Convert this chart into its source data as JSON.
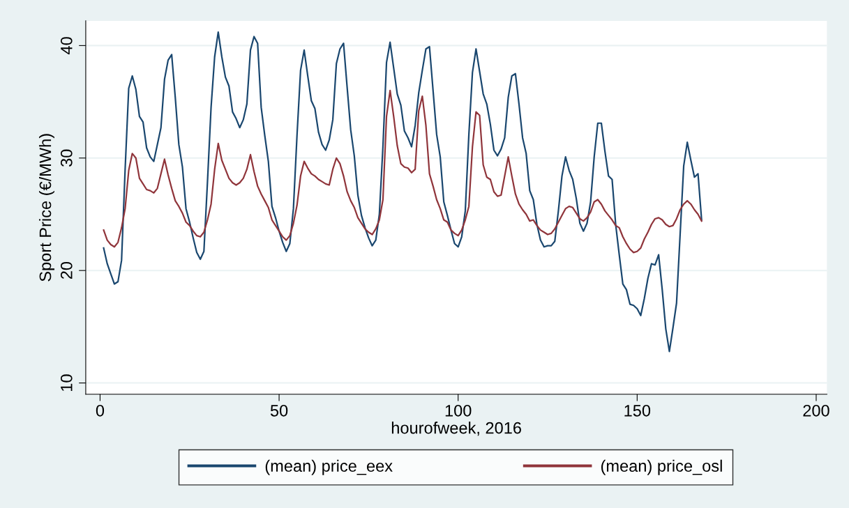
{
  "chart_data": {
    "type": "line",
    "xlabel": "hourofweek, 2016",
    "ylabel": "Sport Price (€/MWh)",
    "x": [
      1,
      2,
      3,
      4,
      5,
      6,
      7,
      8,
      9,
      10,
      11,
      12,
      13,
      14,
      15,
      16,
      17,
      18,
      19,
      20,
      21,
      22,
      23,
      24,
      25,
      26,
      27,
      28,
      29,
      30,
      31,
      32,
      33,
      34,
      35,
      36,
      37,
      38,
      39,
      40,
      41,
      42,
      43,
      44,
      45,
      46,
      47,
      48,
      49,
      50,
      51,
      52,
      53,
      54,
      55,
      56,
      57,
      58,
      59,
      60,
      61,
      62,
      63,
      64,
      65,
      66,
      67,
      68,
      69,
      70,
      71,
      72,
      73,
      74,
      75,
      76,
      77,
      78,
      79,
      80,
      81,
      82,
      83,
      84,
      85,
      86,
      87,
      88,
      89,
      90,
      91,
      92,
      93,
      94,
      95,
      96,
      97,
      98,
      99,
      100,
      101,
      102,
      103,
      104,
      105,
      106,
      107,
      108,
      109,
      110,
      111,
      112,
      113,
      114,
      115,
      116,
      117,
      118,
      119,
      120,
      121,
      122,
      123,
      124,
      125,
      126,
      127,
      128,
      129,
      130,
      131,
      132,
      133,
      134,
      135,
      136,
      137,
      138,
      139,
      140,
      141,
      142,
      143,
      144,
      145,
      146,
      147,
      148,
      149,
      150,
      151,
      152,
      153,
      154,
      155,
      156,
      157,
      158,
      159,
      160,
      161,
      162,
      163,
      164,
      165,
      166,
      167,
      168
    ],
    "series": [
      {
        "name": "(mean) price_eex",
        "color": "#1a476f",
        "values": [
          22.0,
          20.6,
          19.7,
          18.8,
          19.0,
          20.9,
          29.0,
          36.2,
          37.3,
          36.1,
          33.7,
          33.2,
          30.9,
          30.1,
          29.7,
          31.2,
          32.7,
          37.0,
          38.7,
          39.2,
          35.4,
          31.2,
          29.2,
          25.5,
          24.3,
          22.9,
          21.6,
          21.0,
          21.7,
          27.9,
          34.5,
          39.0,
          41.2,
          39.0,
          37.2,
          36.4,
          34.1,
          33.5,
          32.7,
          33.4,
          34.8,
          39.6,
          40.8,
          40.2,
          34.5,
          32.0,
          29.7,
          25.7,
          24.7,
          23.5,
          22.5,
          21.7,
          22.4,
          25.5,
          32.0,
          37.8,
          39.6,
          37.3,
          35.1,
          34.4,
          32.3,
          31.2,
          30.7,
          31.6,
          33.4,
          38.4,
          39.7,
          40.2,
          36.3,
          32.5,
          30.2,
          26.7,
          24.9,
          23.8,
          22.9,
          22.2,
          22.7,
          25.0,
          31.0,
          38.5,
          40.3,
          38.0,
          35.7,
          34.7,
          32.4,
          31.8,
          31.0,
          32.9,
          35.8,
          37.8,
          39.7,
          39.9,
          36.0,
          32.1,
          30.1,
          26.1,
          24.9,
          23.6,
          22.4,
          22.1,
          23.0,
          25.3,
          32.1,
          37.6,
          39.7,
          37.7,
          35.7,
          34.8,
          33.0,
          30.7,
          30.2,
          30.8,
          31.8,
          35.4,
          37.3,
          37.5,
          34.8,
          31.8,
          30.4,
          27.1,
          26.3,
          24.1,
          22.7,
          22.1,
          22.2,
          22.2,
          22.6,
          25.3,
          28.4,
          30.1,
          28.9,
          28.1,
          26.4,
          24.2,
          23.5,
          24.2,
          26.1,
          30.1,
          33.1,
          33.1,
          30.6,
          28.4,
          28.1,
          24.1,
          21.4,
          18.8,
          18.3,
          17.0,
          16.9,
          16.6,
          16.0,
          17.5,
          19.3,
          20.6,
          20.5,
          21.4,
          18.3,
          14.8,
          12.8,
          14.9,
          17.1,
          23.2,
          29.3,
          31.4,
          29.8,
          28.3,
          28.6,
          24.5
        ]
      },
      {
        "name": "(mean) price_osl",
        "color": "#90353b",
        "values": [
          23.6,
          22.7,
          22.3,
          22.1,
          22.5,
          23.8,
          25.5,
          28.9,
          30.4,
          30.0,
          28.2,
          27.7,
          27.2,
          27.1,
          26.9,
          27.3,
          28.6,
          29.9,
          28.5,
          27.3,
          26.2,
          25.7,
          25.1,
          24.3,
          24.0,
          23.5,
          23.1,
          23.0,
          23.4,
          24.5,
          25.9,
          29.0,
          31.3,
          29.8,
          29.0,
          28.2,
          27.8,
          27.6,
          27.8,
          28.2,
          29.0,
          30.3,
          28.8,
          27.5,
          26.8,
          26.2,
          25.6,
          24.5,
          24.0,
          23.5,
          23.0,
          22.7,
          23.1,
          24.2,
          25.8,
          28.4,
          29.7,
          29.1,
          28.6,
          28.4,
          28.1,
          27.9,
          27.7,
          27.6,
          29.0,
          30.0,
          29.5,
          28.4,
          27.0,
          26.2,
          25.6,
          24.7,
          24.2,
          23.7,
          23.4,
          23.2,
          23.7,
          24.5,
          26.3,
          33.7,
          36.0,
          33.7,
          31.1,
          29.5,
          29.2,
          29.1,
          28.7,
          29.0,
          34.2,
          35.5,
          32.9,
          28.6,
          27.5,
          26.3,
          25.5,
          24.5,
          24.3,
          23.6,
          23.3,
          23.1,
          23.6,
          24.5,
          25.7,
          31.0,
          34.1,
          33.8,
          29.4,
          28.3,
          28.1,
          27.0,
          26.6,
          26.7,
          28.4,
          30.1,
          28.4,
          26.8,
          25.9,
          25.4,
          25.0,
          24.4,
          24.5,
          24.0,
          23.6,
          23.4,
          23.2,
          23.3,
          23.7,
          24.3,
          24.9,
          25.5,
          25.7,
          25.6,
          25.1,
          24.6,
          24.4,
          24.7,
          25.2,
          26.1,
          26.3,
          25.9,
          25.3,
          24.9,
          24.5,
          24.0,
          23.8,
          23.0,
          22.4,
          21.9,
          21.6,
          21.7,
          22.0,
          22.8,
          23.4,
          24.1,
          24.6,
          24.7,
          24.5,
          24.1,
          23.9,
          24.0,
          24.6,
          25.4,
          25.9,
          26.2,
          25.9,
          25.4,
          25.0,
          24.4
        ]
      }
    ],
    "xlim": [
      -4,
      203
    ],
    "xticks": [
      0,
      50,
      100,
      150,
      200
    ],
    "ylim": [
      9,
      42.2
    ],
    "yticks": [
      10,
      20,
      30,
      40
    ],
    "grid": "y",
    "legend": "bottom",
    "marker": "none",
    "line_style": "solid"
  }
}
